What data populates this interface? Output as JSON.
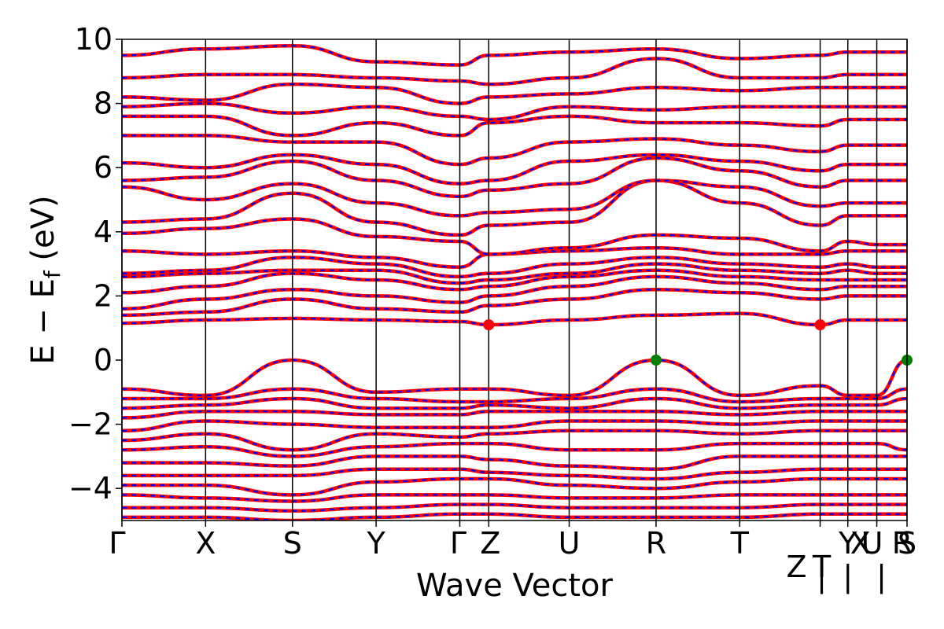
{
  "chart_data": {
    "type": "line",
    "xlabel": "Wave Vector",
    "ylabel_parts": [
      "E − E",
      "f",
      " (eV)"
    ],
    "ylim": [
      -5,
      10
    ],
    "yticks": [
      -4,
      -2,
      0,
      2,
      4,
      6,
      8,
      10
    ],
    "ytick_labels": [
      "−4",
      "−2",
      "0",
      "2",
      "4",
      "6",
      "8",
      "10"
    ],
    "kpath": {
      "nodes": [
        0,
        1.3,
        2.65,
        3.95,
        5.25,
        5.7,
        6.95,
        8.3,
        9.6,
        10.85,
        11.28,
        11.73,
        12.2
      ],
      "labels": [
        {
          "text": "Γ",
          "node": 0,
          "dx": -6,
          "dy": 0
        },
        {
          "text": "X",
          "node": 1,
          "dx": 0,
          "dy": 0
        },
        {
          "text": "S",
          "node": 2,
          "dx": 0,
          "dy": 0
        },
        {
          "text": "Y",
          "node": 3,
          "dx": 0,
          "dy": 0
        },
        {
          "text": "Γ",
          "node": 4,
          "dx": -2,
          "dy": 0
        },
        {
          "text": "Z",
          "node": 5,
          "dx": 2,
          "dy": 0
        },
        {
          "text": "U",
          "node": 6,
          "dx": 0,
          "dy": 0
        },
        {
          "text": "R",
          "node": 7,
          "dx": 0,
          "dy": 0
        },
        {
          "text": "T",
          "node": 8,
          "dx": 0,
          "dy": 0
        },
        {
          "text": "Z",
          "node": 9,
          "dx": -30,
          "dy": 30
        },
        {
          "text": "T",
          "node": 9,
          "dx": 2,
          "dy": 30
        },
        {
          "text": "|",
          "node": 9,
          "dx": 2,
          "dy": 42
        },
        {
          "text": "Y",
          "node": 10,
          "dx": 0,
          "dy": 0
        },
        {
          "text": "|",
          "node": 10,
          "dx": 0,
          "dy": 42
        },
        {
          "text": "X",
          "node": 10,
          "dx": 16,
          "dy": 0
        },
        {
          "text": "U",
          "node": 11,
          "dx": -6,
          "dy": 0
        },
        {
          "text": "|",
          "node": 11,
          "dx": 6,
          "dy": 42
        },
        {
          "text": "R",
          "node": 12,
          "dx": -6,
          "dy": 0
        },
        {
          "text": "S",
          "node": 12,
          "dx": 0,
          "dy": 0
        }
      ]
    },
    "series": [
      {
        "style": "spin-up",
        "color": "#ff0000",
        "dash": "solid"
      },
      {
        "style": "spin-down",
        "color": "#0000ff",
        "dash": "dashed"
      }
    ],
    "bands": [
      [
        1.15,
        1.25,
        1.3,
        1.25,
        1.2,
        1.1,
        1.25,
        1.4,
        1.45,
        1.1,
        1.25,
        1.25,
        1.25
      ],
      [
        1.4,
        1.5,
        1.9,
        1.6,
        1.5,
        1.7,
        1.9,
        2.2,
        2.1,
        1.9,
        2.0,
        2.0,
        2.0
      ],
      [
        1.6,
        1.9,
        2.2,
        2.0,
        1.8,
        2.0,
        2.3,
        2.6,
        2.4,
        2.2,
        2.3,
        2.3,
        2.3
      ],
      [
        2.1,
        2.3,
        2.7,
        2.5,
        2.2,
        2.3,
        2.6,
        2.8,
        2.6,
        2.5,
        2.5,
        2.5,
        2.5
      ],
      [
        2.6,
        2.7,
        2.8,
        2.8,
        2.4,
        2.5,
        2.7,
        3.0,
        2.8,
        2.7,
        2.8,
        2.7,
        2.7
      ],
      [
        2.7,
        2.8,
        3.2,
        3.0,
        2.6,
        2.7,
        3.0,
        3.2,
        3.0,
        2.9,
        3.0,
        2.9,
        2.9
      ],
      [
        3.4,
        3.3,
        3.4,
        3.2,
        2.9,
        3.3,
        3.4,
        3.5,
        3.3,
        3.3,
        3.4,
        3.4,
        3.4
      ],
      [
        3.95,
        4.1,
        4.4,
        3.85,
        3.7,
        3.3,
        3.5,
        3.9,
        3.8,
        3.4,
        3.7,
        3.6,
        3.6
      ],
      [
        4.3,
        4.4,
        5.2,
        4.3,
        3.9,
        4.2,
        4.3,
        5.6,
        4.9,
        4.2,
        4.5,
        4.5,
        4.5
      ],
      [
        5.4,
        5.0,
        5.5,
        4.9,
        4.5,
        4.6,
        4.7,
        5.6,
        5.4,
        4.8,
        4.9,
        4.9,
        4.9
      ],
      [
        5.6,
        5.7,
        6.2,
        5.6,
        5.1,
        5.3,
        5.5,
        6.3,
        5.9,
        5.4,
        5.6,
        5.6,
        5.6
      ],
      [
        6.15,
        6.0,
        6.4,
        6.1,
        5.5,
        5.6,
        6.2,
        6.4,
        6.2,
        5.9,
        6.1,
        6.1,
        6.1
      ],
      [
        7.0,
        7.0,
        6.8,
        6.8,
        6.1,
        6.3,
        6.8,
        6.9,
        6.7,
        6.5,
        6.7,
        6.7,
        6.7
      ],
      [
        7.6,
        7.6,
        7.0,
        7.4,
        7.0,
        7.4,
        7.6,
        7.4,
        7.4,
        7.3,
        7.5,
        7.5,
        7.5
      ],
      [
        7.9,
        8.0,
        7.7,
        7.9,
        7.6,
        7.5,
        7.9,
        7.8,
        7.9,
        7.9,
        7.9,
        7.9,
        7.9
      ],
      [
        8.2,
        8.1,
        8.6,
        8.5,
        8.0,
        8.2,
        8.3,
        8.5,
        8.4,
        8.5,
        8.5,
        8.5,
        8.5
      ],
      [
        8.8,
        8.9,
        8.9,
        8.8,
        8.7,
        8.6,
        8.8,
        9.4,
        8.8,
        8.8,
        8.9,
        8.9,
        8.9
      ],
      [
        9.5,
        9.7,
        9.8,
        9.3,
        9.2,
        9.5,
        9.6,
        9.7,
        9.4,
        9.5,
        9.6,
        9.6,
        9.6
      ],
      [
        -0.9,
        -1.1,
        0.0,
        -1.0,
        -0.9,
        -0.9,
        -1.1,
        0.0,
        -1.1,
        -0.8,
        -1.1,
        -1.1,
        0.0
      ],
      [
        -1.2,
        -1.2,
        -0.9,
        -1.2,
        -1.3,
        -1.3,
        -1.2,
        -0.9,
        -1.3,
        -1.2,
        -1.2,
        -1.2,
        -0.9
      ],
      [
        -1.5,
        -1.4,
        -1.2,
        -1.5,
        -1.5,
        -1.4,
        -1.5,
        -1.2,
        -1.5,
        -1.4,
        -1.4,
        -1.4,
        -1.2
      ],
      [
        -1.8,
        -1.6,
        -1.6,
        -1.7,
        -1.7,
        -1.6,
        -1.6,
        -1.6,
        -1.7,
        -1.6,
        -1.6,
        -1.6,
        -1.6
      ],
      [
        -2.2,
        -1.9,
        -2.0,
        -2.1,
        -2.1,
        -2.1,
        -1.9,
        -1.9,
        -2.0,
        -1.9,
        -1.9,
        -1.9,
        -1.9
      ],
      [
        -2.5,
        -2.3,
        -2.8,
        -2.3,
        -2.4,
        -2.3,
        -2.2,
        -2.2,
        -2.3,
        -2.2,
        -2.2,
        -2.2,
        -2.2
      ],
      [
        -2.8,
        -2.7,
        -3.0,
        -2.7,
        -2.6,
        -2.6,
        -2.8,
        -2.8,
        -2.6,
        -2.6,
        -2.6,
        -2.6,
        -2.8
      ],
      [
        -3.2,
        -3.2,
        -3.3,
        -3.0,
        -3.0,
        -3.1,
        -3.3,
        -3.4,
        -3.0,
        -3.0,
        -3.0,
        -3.0,
        -3.0
      ],
      [
        -3.6,
        -3.6,
        -3.6,
        -3.4,
        -3.4,
        -3.5,
        -3.6,
        -3.7,
        -3.5,
        -3.4,
        -3.4,
        -3.4,
        -3.4
      ],
      [
        -3.9,
        -3.9,
        -4.2,
        -3.8,
        -3.7,
        -3.7,
        -3.9,
        -4.0,
        -3.8,
        -3.7,
        -3.7,
        -3.7,
        -3.7
      ],
      [
        -4.2,
        -4.3,
        -4.4,
        -4.2,
        -4.2,
        -4.2,
        -4.3,
        -4.3,
        -4.2,
        -4.2,
        -4.2,
        -4.2,
        -4.2
      ],
      [
        -4.6,
        -4.6,
        -4.7,
        -4.6,
        -4.5,
        -4.5,
        -4.6,
        -4.6,
        -4.6,
        -4.5,
        -4.5,
        -4.5,
        -4.5
      ],
      [
        -4.9,
        -4.9,
        -5.0,
        -4.9,
        -4.8,
        -4.8,
        -4.9,
        -4.9,
        -4.9,
        -4.8,
        -4.8,
        -4.8,
        -4.8
      ]
    ],
    "cbm_points": [
      {
        "node": 5,
        "energy": 1.1,
        "color": "#ff0000"
      },
      {
        "node": 9,
        "energy": 1.1,
        "color": "#ff0000"
      }
    ],
    "vbm_points": [
      {
        "node": 7,
        "energy": 0.0,
        "color": "#008000"
      },
      {
        "node": 12,
        "energy": 0.0,
        "color": "#008000"
      }
    ]
  }
}
